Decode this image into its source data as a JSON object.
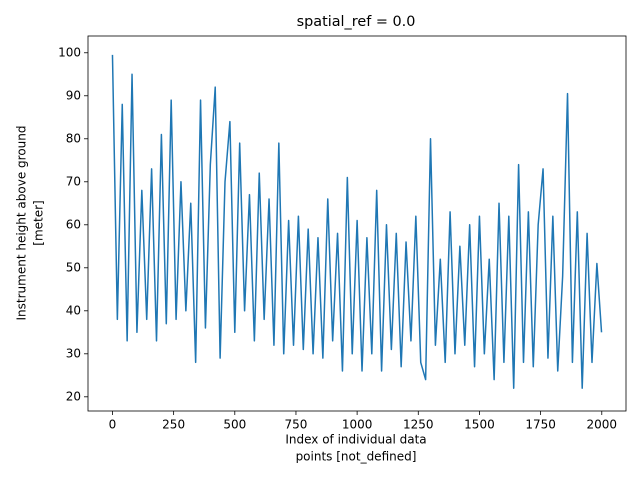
{
  "chart_data": {
    "type": "line",
    "title": "spatial_ref = 0.0",
    "xlabel": [
      "Index of individual data",
      "points [not_defined]"
    ],
    "ylabel": [
      "Instrument height above ground",
      "[meter]"
    ],
    "x": [
      0,
      20,
      40,
      60,
      80,
      100,
      120,
      140,
      160,
      180,
      200,
      220,
      240,
      260,
      280,
      300,
      320,
      340,
      360,
      380,
      400,
      420,
      440,
      460,
      480,
      500,
      520,
      540,
      560,
      580,
      600,
      620,
      640,
      660,
      680,
      700,
      720,
      740,
      760,
      780,
      800,
      820,
      840,
      860,
      880,
      900,
      920,
      940,
      960,
      980,
      1000,
      1020,
      1040,
      1060,
      1080,
      1100,
      1120,
      1140,
      1160,
      1180,
      1200,
      1220,
      1240,
      1260,
      1280,
      1300,
      1320,
      1340,
      1360,
      1380,
      1400,
      1420,
      1440,
      1460,
      1480,
      1500,
      1520,
      1540,
      1560,
      1580,
      1600,
      1620,
      1640,
      1660,
      1680,
      1700,
      1720,
      1740,
      1760,
      1780,
      1800,
      1820,
      1840,
      1860,
      1880,
      1900,
      1920,
      1940,
      1960,
      1980,
      1999
    ],
    "series": [
      {
        "color": "#1f77b4",
        "values": [
          99.5,
          38,
          88,
          33,
          95,
          35,
          68,
          38,
          73,
          33,
          81,
          37,
          89,
          38,
          70,
          40,
          65,
          28,
          89,
          36,
          74,
          92,
          29,
          70,
          84,
          35,
          79,
          40,
          67,
          33,
          72,
          38,
          66,
          32,
          79,
          30,
          61,
          32,
          62,
          31,
          59,
          30,
          57,
          29,
          66,
          33,
          58,
          26,
          71,
          30,
          61,
          26,
          57,
          30,
          68,
          26,
          60,
          31,
          58,
          27,
          56,
          33,
          62,
          28,
          24,
          80,
          32,
          52,
          28,
          63,
          30,
          55,
          32,
          60,
          27,
          62,
          30,
          52,
          24,
          65,
          28,
          62,
          22,
          74,
          28,
          63,
          27,
          60,
          73,
          29,
          62,
          26,
          48,
          90.5,
          28,
          63,
          22,
          58,
          28,
          51,
          35
        ]
      }
    ],
    "xlim": [
      -100,
      2099
    ],
    "ylim": [
      16.7,
      103.9
    ],
    "xticks": [
      0,
      250,
      500,
      750,
      1000,
      1250,
      1500,
      1750,
      2000
    ],
    "yticks": [
      20,
      30,
      40,
      50,
      60,
      70,
      80,
      90,
      100
    ]
  }
}
